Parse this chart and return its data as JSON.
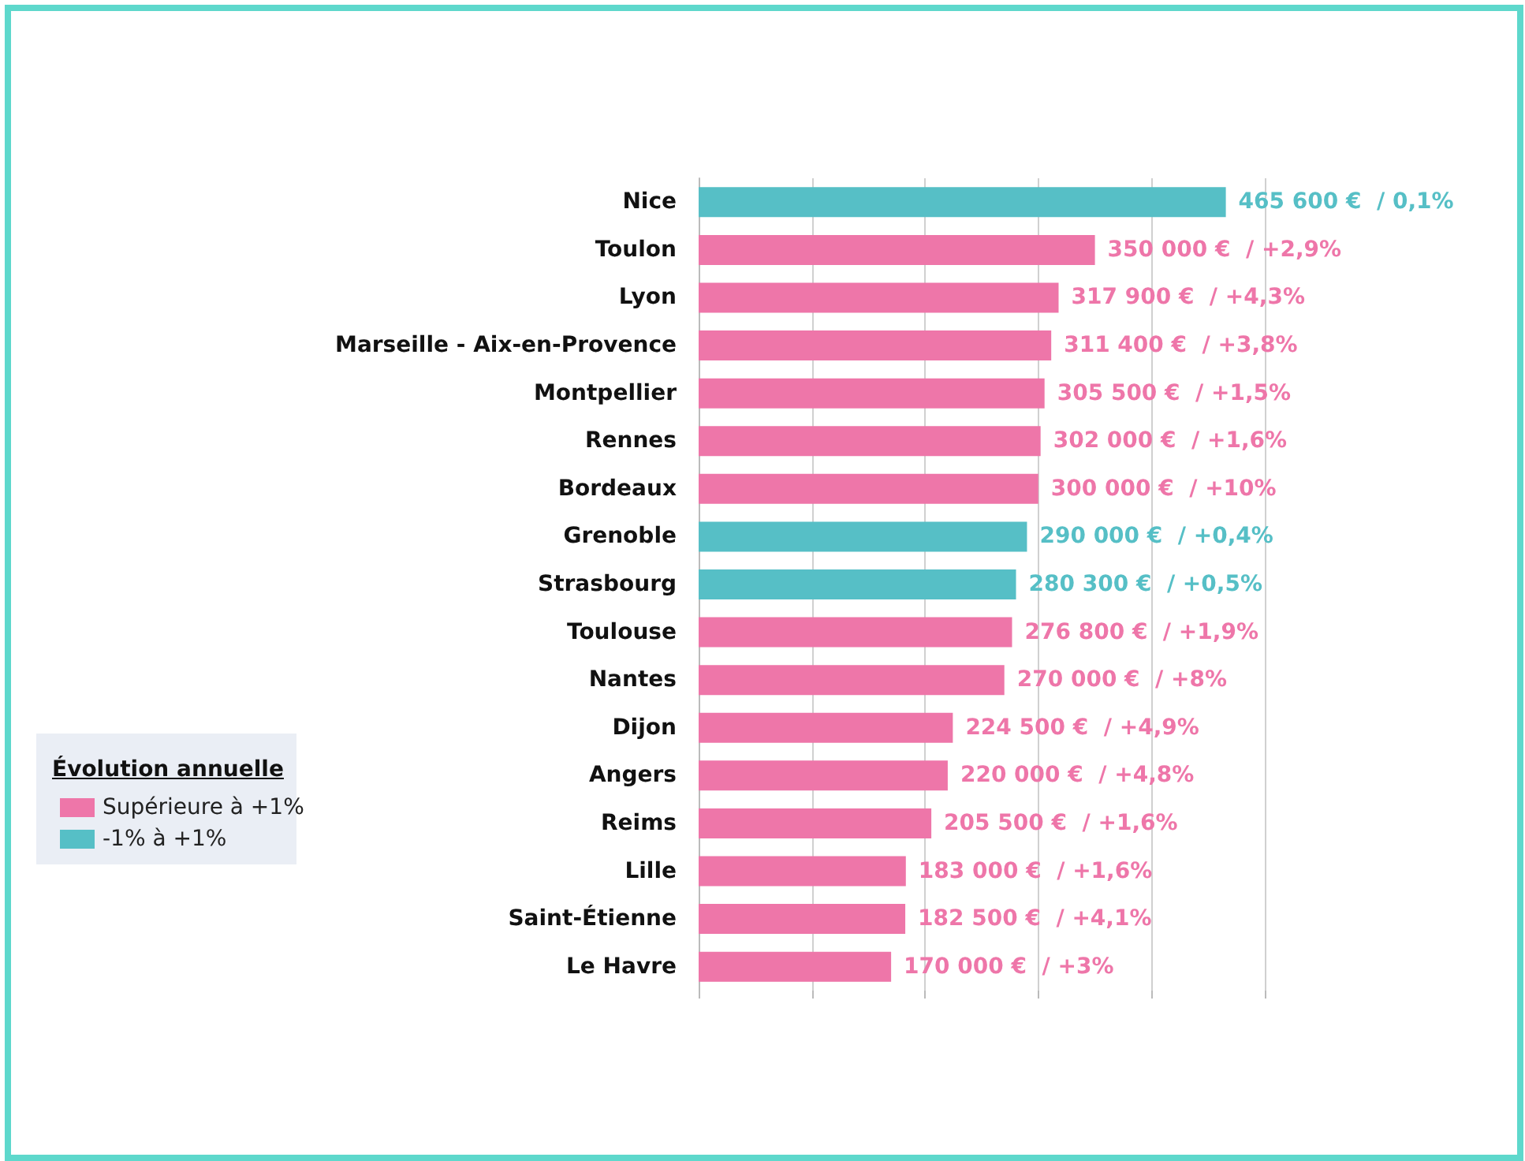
{
  "chart_data": {
    "type": "bar",
    "orientation": "horizontal",
    "stacked": true,
    "legend": "left",
    "legend_title": "Évolution annuelle",
    "grid": "x",
    "tick_labels": "y",
    "categories": [
      "Nice",
      "Toulon",
      "Lyon",
      "Marseille - Aix-en-Provence",
      "Montpellier",
      "Rennes",
      "Bordeaux",
      "Grenoble",
      "Strasbourg",
      "Toulouse",
      "Nantes",
      "Dijon",
      "Angers",
      "Reims",
      "Lille",
      "Saint-Étienne",
      "Le Havre"
    ],
    "series": [
      {
        "name": "Supérieure à +1%",
        "color": "#ee76a9",
        "values": [
          null,
          350000,
          317900,
          311400,
          305500,
          302000,
          300000,
          null,
          null,
          276800,
          270000,
          224500,
          220000,
          205500,
          183000,
          182500,
          170000
        ],
        "value_labels": [
          null,
          "350 000 €  / +2,9%",
          "317 900 €  / +4,3%",
          "311 400 €  / +3,8%",
          "305 500 €  / +1,5%",
          "302 000 €  / +1,6%",
          "300 000 €  / +10%",
          null,
          null,
          "276 800 €  / +1,9%",
          "270 000 €  / +8%",
          "224 500 €  / +4,9%",
          "220 000 €  / +4,8%",
          "205 500 €  / +1,6%",
          "183 000 €  / +1,6%",
          "182 500 €  / +4,1%",
          "170 000 €  / +3%"
        ]
      },
      {
        "name": "-1% à +1%",
        "color": "#56bfc6",
        "values": [
          465600,
          null,
          null,
          null,
          null,
          null,
          null,
          290000,
          280300,
          null,
          null,
          null,
          null,
          null,
          null,
          null,
          null
        ],
        "value_labels": [
          "465 600 €  / 0,1%",
          null,
          null,
          null,
          null,
          null,
          null,
          "290 000 €  / +0,4%",
          "280 300 €  / +0,5%",
          null,
          null,
          null,
          null,
          null,
          null,
          null,
          null
        ]
      }
    ]
  }
}
